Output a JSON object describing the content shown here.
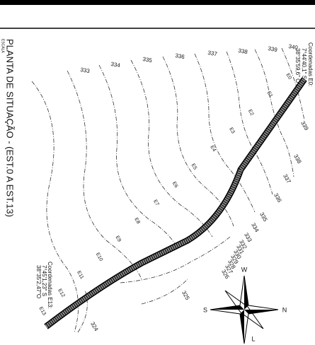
{
  "title": "PLANTA DE SITUAÇÃO - (EST.0 A EST.13)",
  "scale_label": "ESCALA",
  "coordinates_start": {
    "heading": "Coordenadas E0:",
    "lat": "7°44'40,1\" S",
    "lon": "38°35'59,6\" O"
  },
  "coordinates_end": {
    "heading": "Coordenadas E13:",
    "lat": "7°45'1,23\" S",
    "lon": "38°35'2,47\"O"
  },
  "contour_labels": [
    333,
    334,
    335,
    336,
    337,
    338,
    339,
    340,
    339,
    338,
    337,
    336,
    335,
    334,
    333,
    332,
    331,
    330,
    329,
    328,
    327,
    326,
    325,
    324
  ],
  "stations": [
    "E0",
    "E1",
    "E2",
    "E3",
    "E4",
    "E5",
    "E6",
    "E7",
    "E8",
    "E9",
    "E10",
    "E11",
    "E12",
    "E13"
  ],
  "compass": {
    "north": "N",
    "south": "S",
    "east": "L",
    "west": "W"
  }
}
